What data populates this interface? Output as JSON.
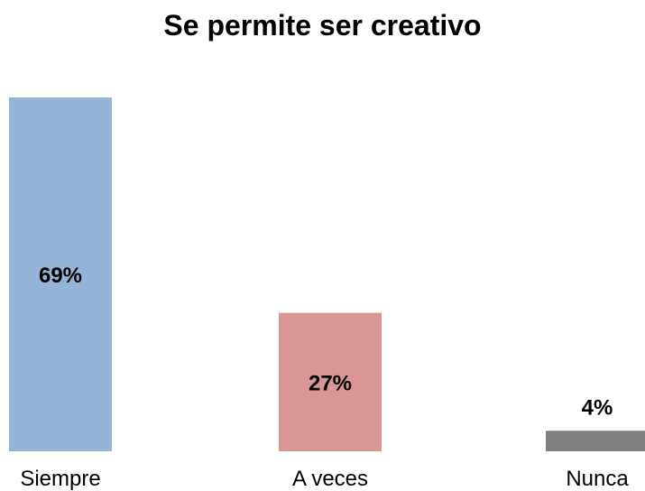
{
  "chart_data": {
    "type": "bar",
    "title": "Se permite ser creativo",
    "categories": [
      "Siempre",
      "A veces",
      "Nunca"
    ],
    "values": [
      69,
      27,
      4
    ],
    "data_labels": [
      "69%",
      "27%",
      "4%"
    ],
    "colors": [
      "#95b3d7",
      "#d99694",
      "#808080"
    ],
    "ylim": [
      0,
      69
    ],
    "grid": false,
    "legend": "none"
  }
}
